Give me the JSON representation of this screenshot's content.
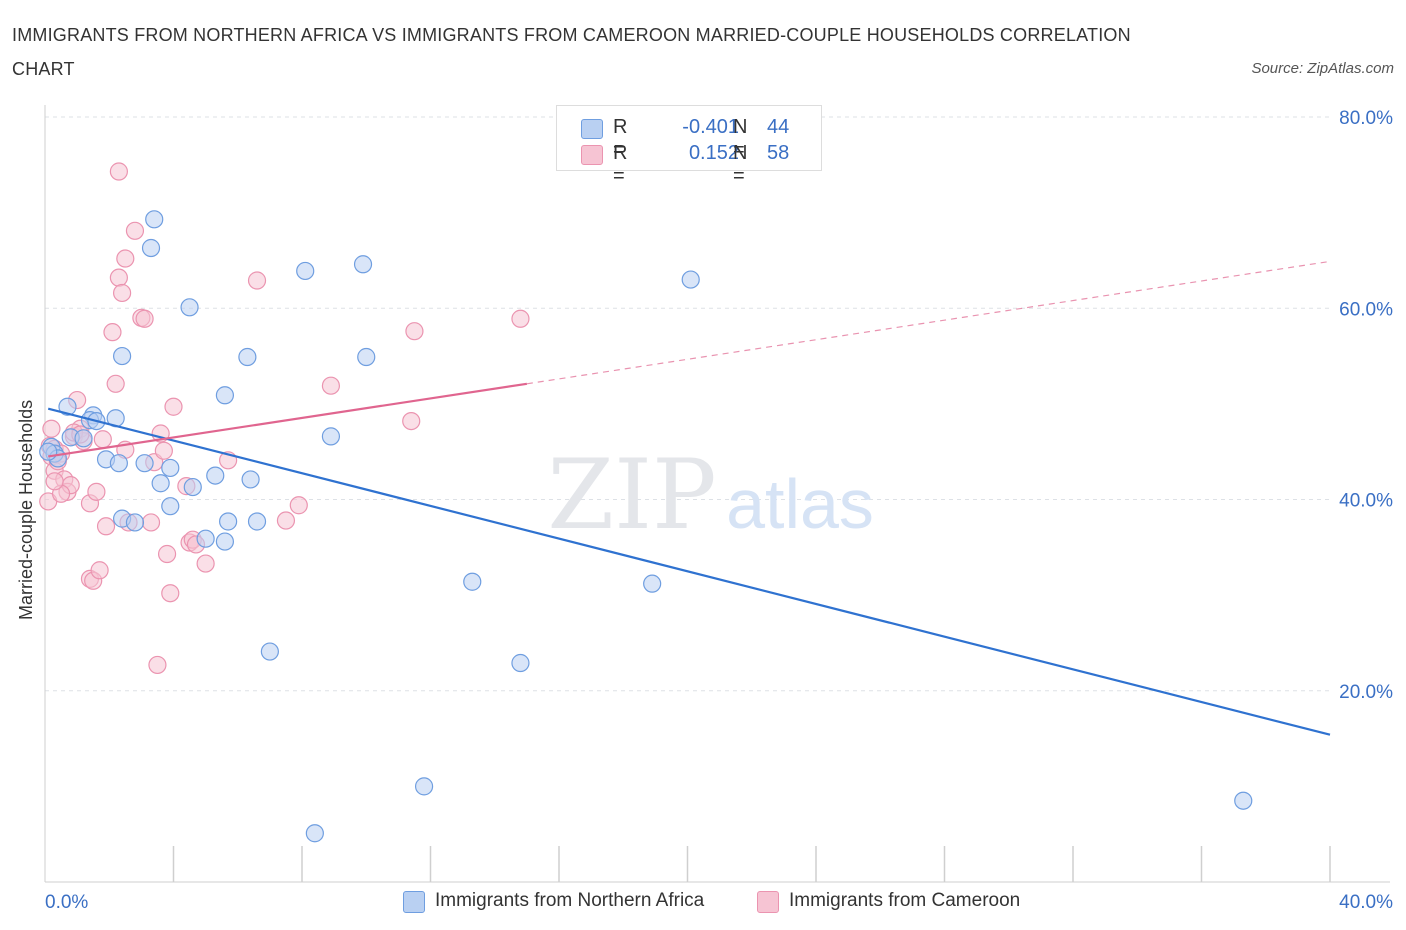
{
  "title": "IMMIGRANTS FROM NORTHERN AFRICA VS IMMIGRANTS FROM CAMEROON MARRIED-COUPLE HOUSEHOLDS CORRELATION CHART",
  "source": "Source: ZipAtlas.com",
  "legend": {
    "r_label": "R =",
    "n_label": "N =",
    "rows": [
      {
        "r": "-0.401",
        "n": "44"
      },
      {
        "r": "0.152",
        "n": "58"
      }
    ]
  },
  "watermark": {
    "zip": "ZIP",
    "atlas": "atlas"
  },
  "colors": {
    "blue_fill": "#b9d0f2",
    "blue_stroke": "#6f9ee0",
    "blue_line": "#2f72d0",
    "pink_fill": "#f6c4d3",
    "pink_stroke": "#eb94b0",
    "pink_line": "#e0658f",
    "tick_text": "#3a6fc4",
    "grid": "#dde1e6"
  },
  "chart_data": {
    "type": "scatter",
    "title": "IMMIGRANTS FROM NORTHERN AFRICA VS IMMIGRANTS FROM CAMEROON MARRIED-COUPLE HOUSEHOLDS CORRELATION CHART",
    "xlabel": "",
    "ylabel": "Married-couple Households",
    "xlim": [
      0,
      40
    ],
    "ylim": [
      0,
      80
    ],
    "x_tick_labels": [
      "0.0%",
      "40.0%"
    ],
    "y_ticks": [
      20,
      40,
      60,
      80
    ],
    "y_tick_labels": [
      "20.0%",
      "40.0%",
      "60.0%",
      "80.0%"
    ],
    "grid": true,
    "legend_position": "bottom",
    "series": [
      {
        "name": "Immigrants from Northern Africa",
        "color": "blue",
        "r": -0.401,
        "n": 44,
        "trend": {
          "x": [
            0.1,
            40.0
          ],
          "y": [
            49.5,
            15.4
          ]
        },
        "trend_dashed": null,
        "points": [
          [
            0.2,
            45.5
          ],
          [
            0.3,
            44.8
          ],
          [
            0.4,
            44.3
          ],
          [
            0.8,
            46.5
          ],
          [
            0.7,
            49.7
          ],
          [
            1.5,
            48.8
          ],
          [
            1.4,
            48.3
          ],
          [
            1.2,
            46.4
          ],
          [
            1.6,
            48.2
          ],
          [
            2.2,
            48.5
          ],
          [
            1.9,
            44.2
          ],
          [
            2.3,
            43.8
          ],
          [
            2.4,
            55.0
          ],
          [
            3.4,
            69.3
          ],
          [
            3.3,
            66.3
          ],
          [
            4.5,
            60.1
          ],
          [
            3.1,
            43.8
          ],
          [
            3.9,
            43.3
          ],
          [
            3.6,
            41.7
          ],
          [
            3.9,
            39.3
          ],
          [
            4.6,
            41.3
          ],
          [
            2.4,
            38.0
          ],
          [
            2.8,
            37.6
          ],
          [
            5.3,
            42.5
          ],
          [
            5.6,
            50.9
          ],
          [
            6.3,
            54.9
          ],
          [
            6.4,
            42.1
          ],
          [
            5.7,
            37.7
          ],
          [
            6.6,
            37.7
          ],
          [
            5.0,
            35.9
          ],
          [
            5.6,
            35.6
          ],
          [
            7.0,
            24.1
          ],
          [
            8.4,
            5.1
          ],
          [
            8.1,
            63.9
          ],
          [
            8.9,
            46.6
          ],
          [
            9.9,
            64.6
          ],
          [
            10.0,
            54.9
          ],
          [
            11.8,
            10.0
          ],
          [
            13.3,
            31.4
          ],
          [
            14.8,
            22.9
          ],
          [
            18.9,
            31.2
          ],
          [
            20.1,
            63.0
          ],
          [
            37.3,
            8.5
          ],
          [
            0.1,
            45.0
          ]
        ]
      },
      {
        "name": "Immigrants from Cameroon",
        "color": "pink",
        "r": 0.152,
        "n": 58,
        "trend": {
          "x": [
            0.1,
            15.0
          ],
          "y": [
            44.5,
            52.1
          ]
        },
        "trend_dashed": {
          "x": [
            15.0,
            40.0
          ],
          "y": [
            52.1,
            64.9
          ]
        },
        "points": [
          [
            0.1,
            39.8
          ],
          [
            0.15,
            45.6
          ],
          [
            0.2,
            44.5
          ],
          [
            0.3,
            45.3
          ],
          [
            0.3,
            43.0
          ],
          [
            0.5,
            44.8
          ],
          [
            0.6,
            42.1
          ],
          [
            0.7,
            40.8
          ],
          [
            0.8,
            41.5
          ],
          [
            0.9,
            46.6
          ],
          [
            1.0,
            50.4
          ],
          [
            1.1,
            47.4
          ],
          [
            1.2,
            46.1
          ],
          [
            1.4,
            39.6
          ],
          [
            1.4,
            31.7
          ],
          [
            1.5,
            31.5
          ],
          [
            1.6,
            40.8
          ],
          [
            1.7,
            32.6
          ],
          [
            1.8,
            46.3
          ],
          [
            1.9,
            37.2
          ],
          [
            2.1,
            57.5
          ],
          [
            2.2,
            52.1
          ],
          [
            2.3,
            63.2
          ],
          [
            2.3,
            74.3
          ],
          [
            2.4,
            61.6
          ],
          [
            2.5,
            65.2
          ],
          [
            2.5,
            45.2
          ],
          [
            2.6,
            37.6
          ],
          [
            2.8,
            68.1
          ],
          [
            3.0,
            59.0
          ],
          [
            3.1,
            58.9
          ],
          [
            3.3,
            37.6
          ],
          [
            3.4,
            43.9
          ],
          [
            3.5,
            22.7
          ],
          [
            3.6,
            46.9
          ],
          [
            3.7,
            45.1
          ],
          [
            3.8,
            34.3
          ],
          [
            3.9,
            30.2
          ],
          [
            4.0,
            49.7
          ],
          [
            4.4,
            41.4
          ],
          [
            4.5,
            35.5
          ],
          [
            4.6,
            35.8
          ],
          [
            4.7,
            35.3
          ],
          [
            5.0,
            33.3
          ],
          [
            5.7,
            44.1
          ],
          [
            6.6,
            62.9
          ],
          [
            7.5,
            37.8
          ],
          [
            7.9,
            39.4
          ],
          [
            8.9,
            51.9
          ],
          [
            11.5,
            57.6
          ],
          [
            11.4,
            48.2
          ],
          [
            14.8,
            58.9
          ],
          [
            0.4,
            44.0
          ],
          [
            0.9,
            47.0
          ],
          [
            1.1,
            46.8
          ],
          [
            0.2,
            47.4
          ],
          [
            0.5,
            40.6
          ],
          [
            0.3,
            41.9
          ]
        ]
      }
    ]
  }
}
